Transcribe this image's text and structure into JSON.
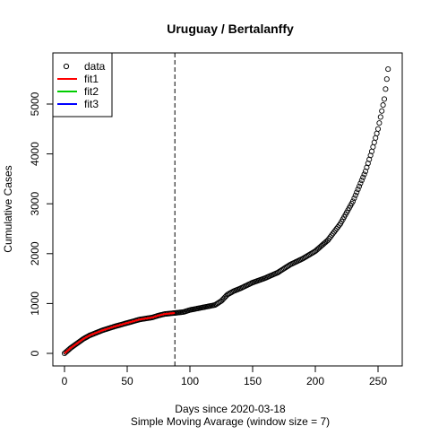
{
  "chart_data": {
    "type": "scatter",
    "title": "Uruguay / Bertalanffy",
    "xlabel": "Days since 2020-03-18",
    "xlabel_sub": "Simple Moving Avarage (window size = 7)",
    "ylabel": "Cumulative Cases",
    "xlim": [
      0,
      260
    ],
    "ylim": [
      0,
      5700
    ],
    "x_ticks": [
      0,
      50,
      100,
      150,
      200,
      250
    ],
    "y_ticks": [
      0,
      1000,
      2000,
      3000,
      4000,
      5000
    ],
    "x_tick_labels": [
      "0",
      "50",
      "100",
      "150",
      "200",
      "250"
    ],
    "y_tick_labels": [
      "0",
      "1000",
      "2000",
      "3000",
      "4000",
      "5000"
    ],
    "vline_x": 88,
    "grid": false,
    "legend_position": "top-left",
    "legend": [
      {
        "label": "data",
        "marker": "circle",
        "color": "#000000"
      },
      {
        "label": "fit1",
        "marker": "line",
        "color": "#ff0000"
      },
      {
        "label": "fit2",
        "marker": "line",
        "color": "#00cd00"
      },
      {
        "label": "fit3",
        "marker": "line",
        "color": "#0000ff"
      }
    ],
    "data_anchors_x": [
      0,
      5,
      10,
      15,
      20,
      30,
      40,
      50,
      60,
      70,
      75,
      80,
      88,
      95,
      100,
      110,
      120,
      125,
      130,
      135,
      140,
      150,
      160,
      170,
      180,
      190,
      200,
      210,
      220,
      230,
      240,
      245,
      250,
      255,
      258
    ],
    "data_anchors_y": [
      0,
      110,
      200,
      290,
      360,
      460,
      540,
      610,
      680,
      720,
      760,
      790,
      810,
      830,
      870,
      920,
      970,
      1050,
      1180,
      1250,
      1300,
      1420,
      1510,
      1620,
      1780,
      1900,
      2050,
      2270,
      2600,
      3050,
      3650,
      4050,
      4500,
      5100,
      5700
    ],
    "fit1": {
      "x_start": 0,
      "x_end": 88,
      "color": "#ff0000"
    }
  }
}
